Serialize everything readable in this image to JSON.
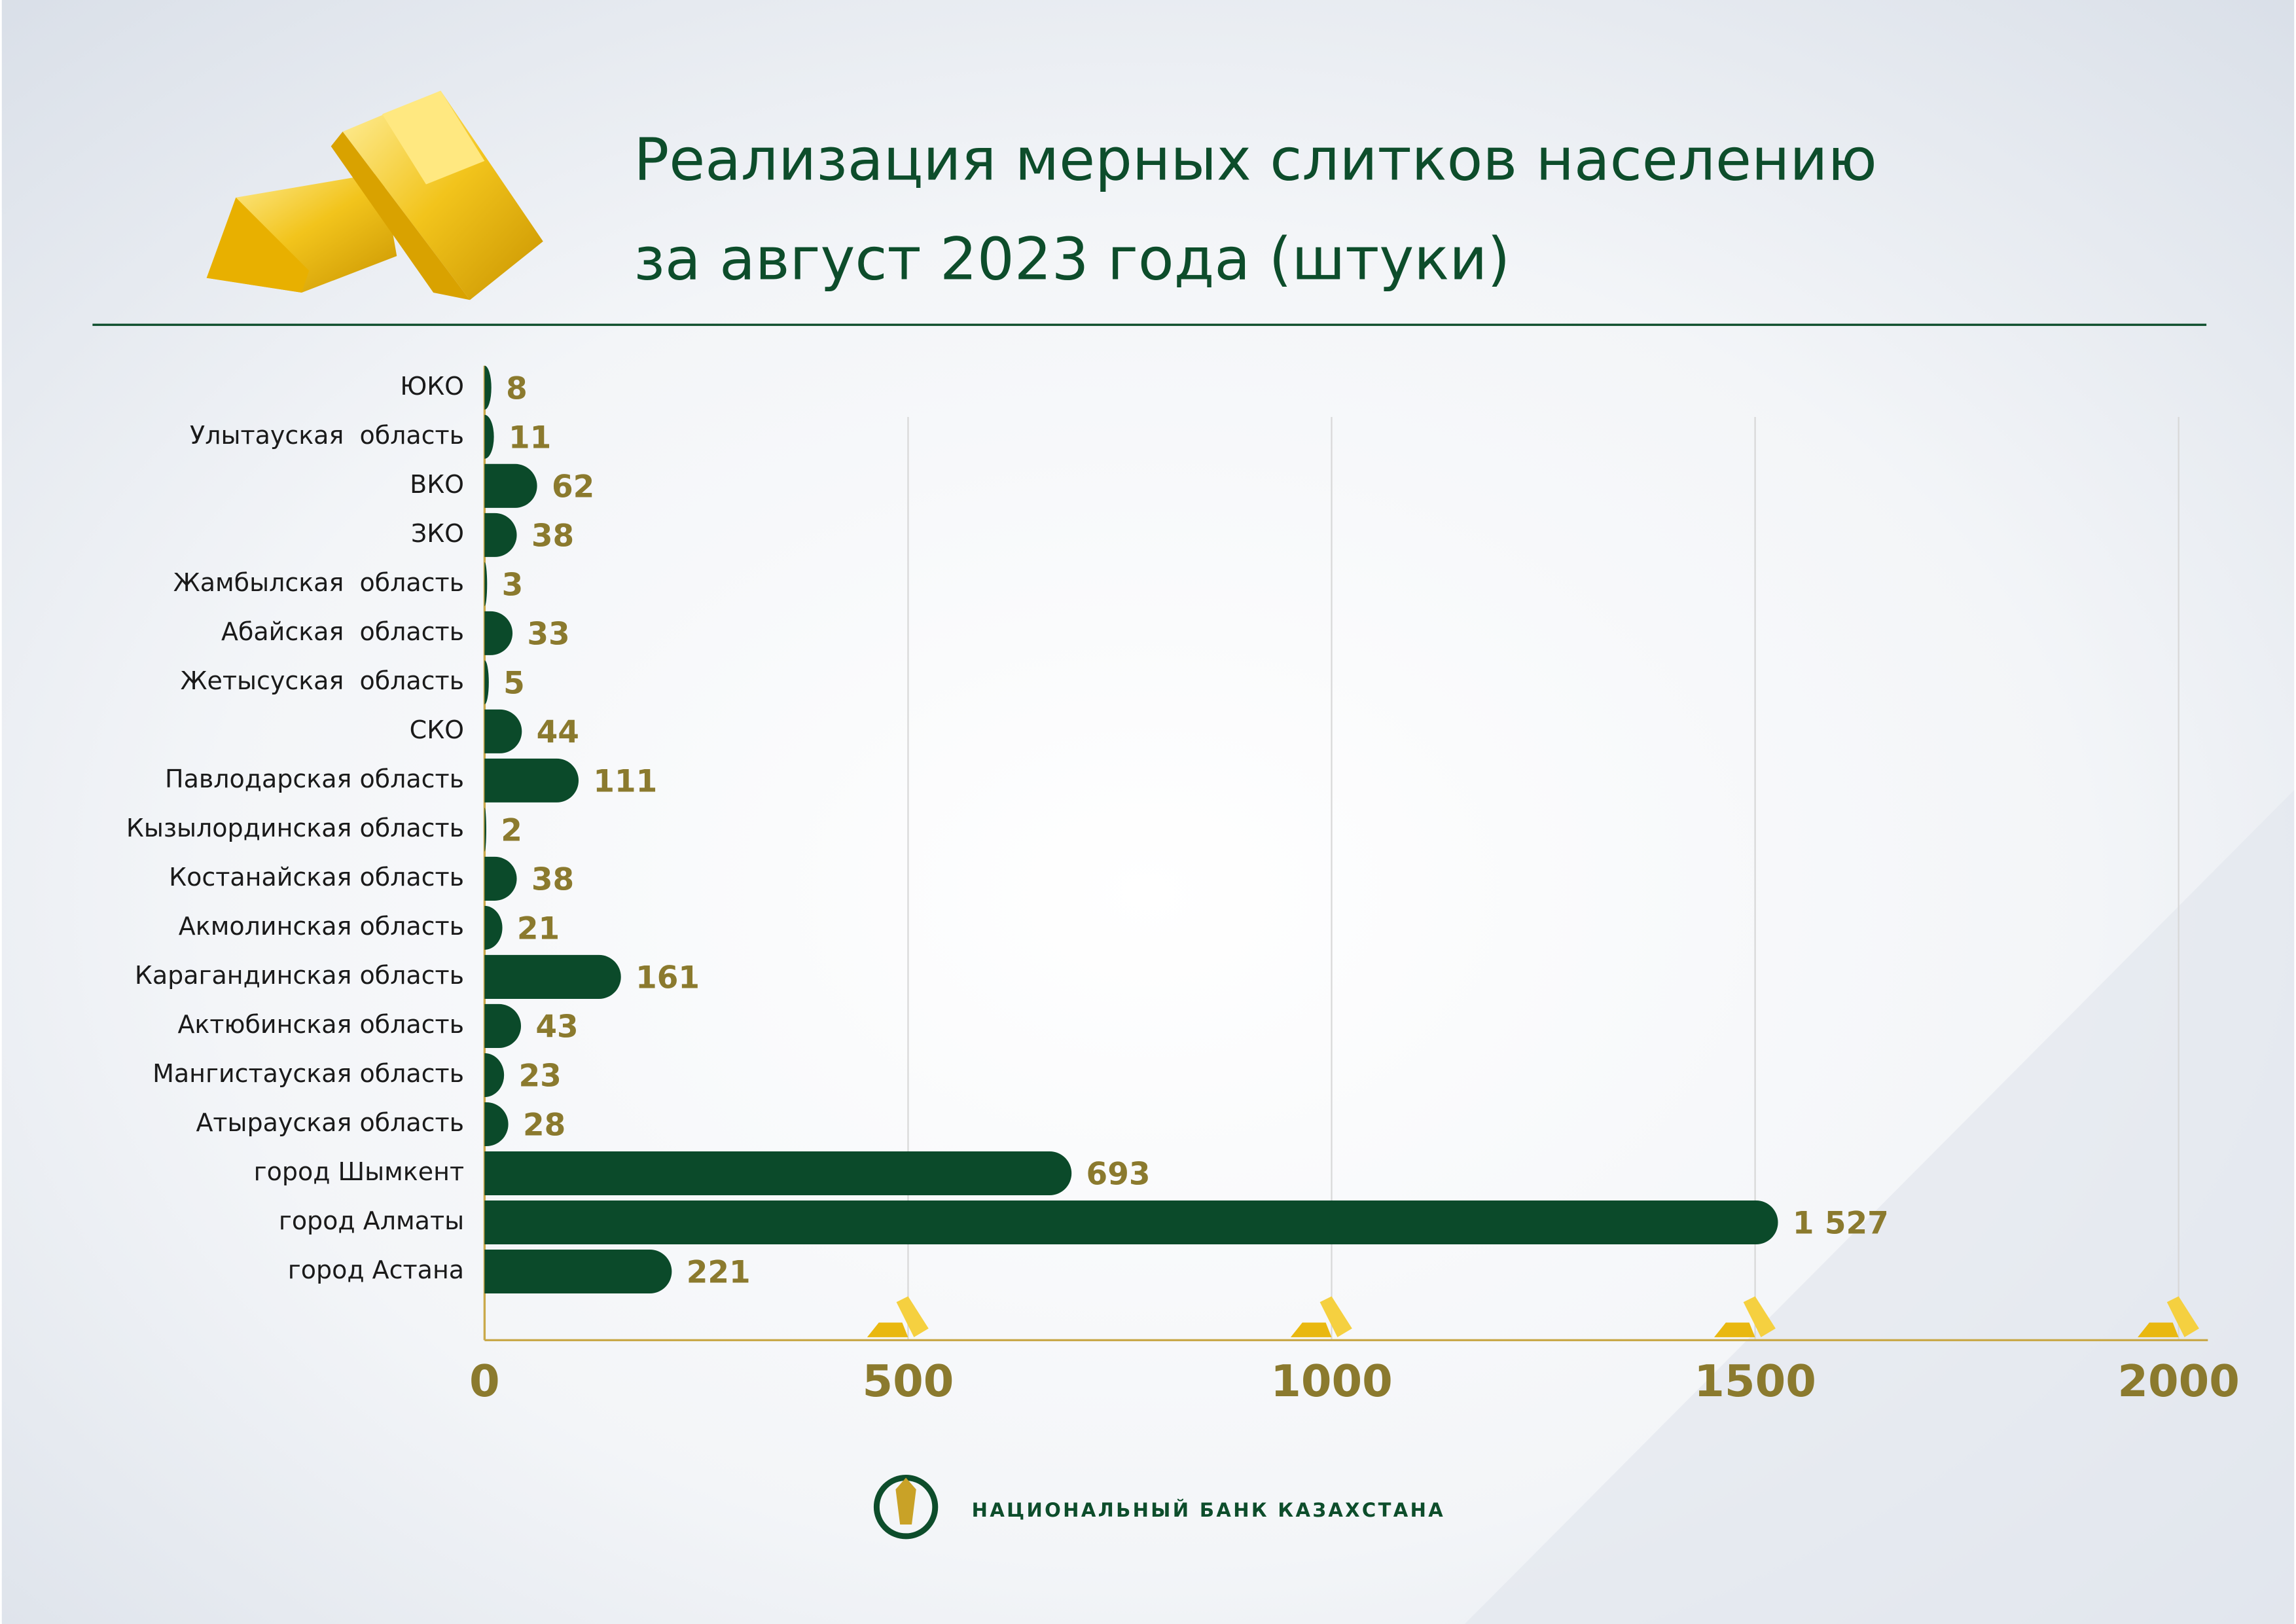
{
  "chart_data": {
    "type": "bar",
    "orientation": "horizontal",
    "title": "Реализация мерных слитков населению за август 2023 года (штуки)",
    "categories": [
      "ЮКО",
      "Улытауская  область",
      "ВКО",
      "ЗКО",
      "Жамбылская  область",
      "Абайская  область",
      "Жетысуская  область",
      "СКО",
      "Павлодарская область",
      "Кызылординская область",
      "Костанайская область",
      "Акмолинская область",
      "Карагандинская область",
      "Актюбинская область",
      "Мангистауская область",
      "Атырауская область",
      "город Шымкент",
      "город Алматы",
      "город Астана"
    ],
    "values": [
      8,
      11,
      62,
      38,
      3,
      33,
      5,
      44,
      111,
      2,
      38,
      21,
      161,
      43,
      23,
      28,
      693,
      1527,
      221
    ],
    "value_labels": [
      "8",
      "11",
      "62",
      "38",
      "3",
      "33",
      "5",
      "44",
      "111",
      "2",
      "38",
      "21",
      "161",
      "43",
      "23",
      "28",
      "693",
      "1 527",
      "221"
    ],
    "color": "#0b4a2a",
    "xlim": [
      0,
      2000
    ],
    "xticks": [
      0,
      500,
      1000,
      1500,
      2000
    ],
    "grid": true,
    "footer": "НАЦИОНАЛЬНЫЙ БАНК КАЗАХСТАНА"
  }
}
